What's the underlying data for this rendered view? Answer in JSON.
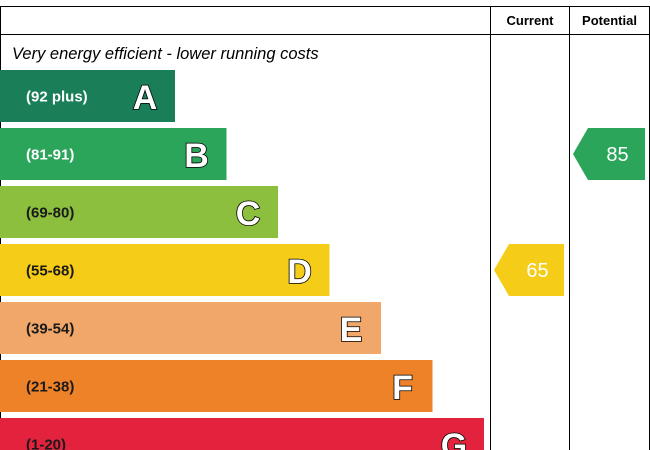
{
  "chart_data": {
    "type": "bar",
    "header": {
      "current": "Current",
      "potential": "Potential"
    },
    "top_note": "Very energy efficient - lower running costs",
    "bands": [
      {
        "letter": "A",
        "range": "(92 plus)",
        "color": "#1a7e58",
        "range_text_color": "#ffffff"
      },
      {
        "letter": "B",
        "range": "(81-91)",
        "color": "#2ba55a",
        "range_text_color": "#ffffff"
      },
      {
        "letter": "C",
        "range": "(69-80)",
        "color": "#8dbf3f",
        "range_text_color": "#1a1a1a"
      },
      {
        "letter": "D",
        "range": "(55-68)",
        "color": "#f5cc17",
        "range_text_color": "#1a1a1a"
      },
      {
        "letter": "E",
        "range": "(39-54)",
        "color": "#f1a769",
        "range_text_color": "#1a1a1a"
      },
      {
        "letter": "F",
        "range": "(21-38)",
        "color": "#ee8228",
        "range_text_color": "#1a1a1a"
      },
      {
        "letter": "G",
        "range": "(1-20)",
        "color": "#e3233d",
        "range_text_color": "#1a1a1a"
      }
    ],
    "current": {
      "value": 65,
      "band": "D",
      "color": "#f5cc17"
    },
    "potential": {
      "value": 85,
      "band": "B",
      "color": "#2ba55a"
    }
  }
}
